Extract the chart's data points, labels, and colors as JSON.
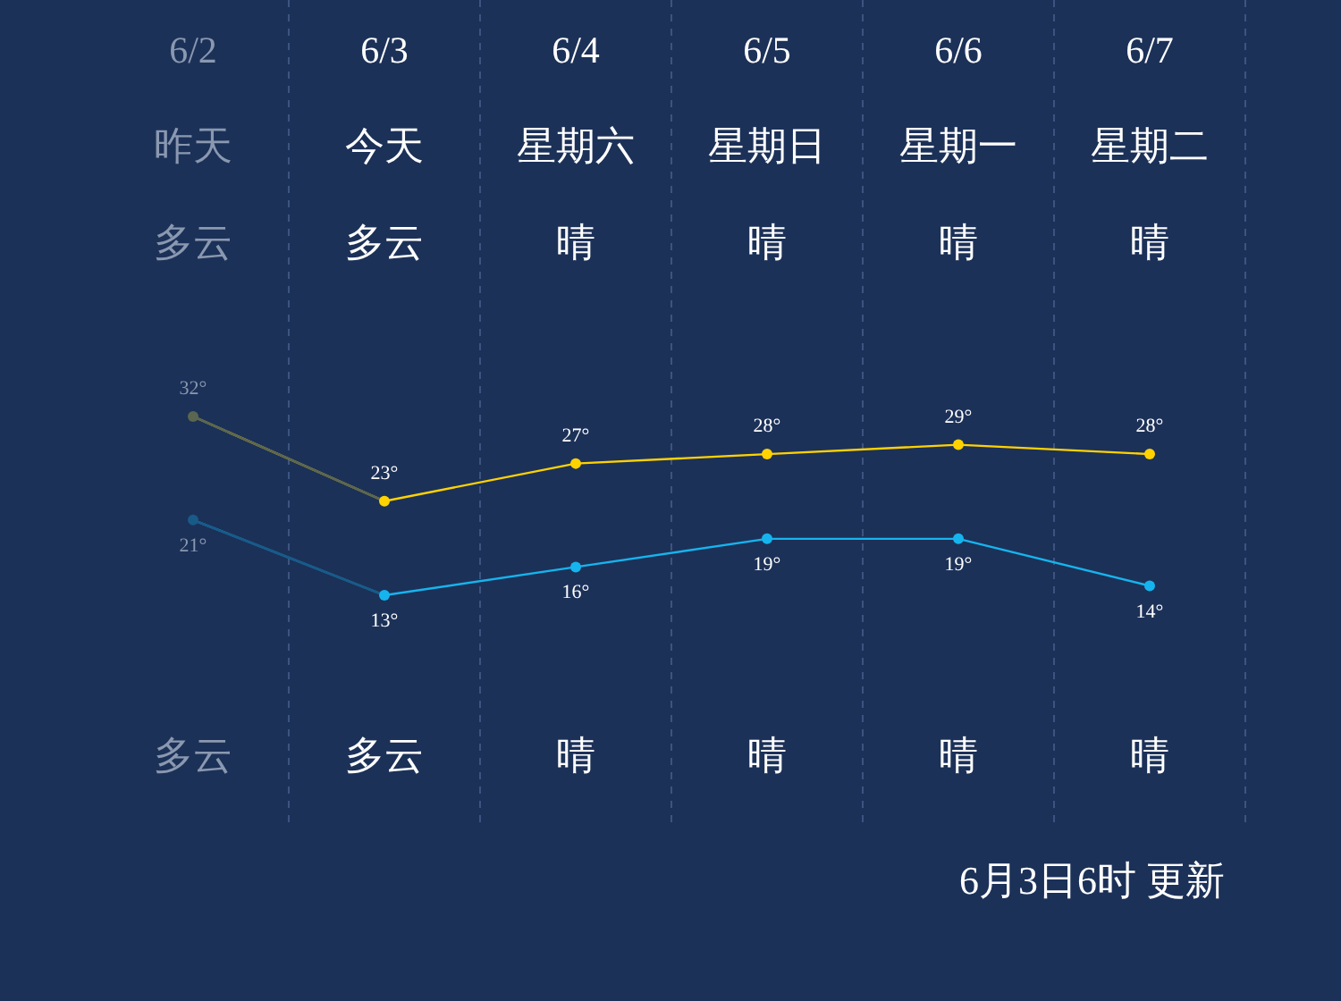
{
  "chart_data": {
    "type": "line",
    "categories": [
      "6/2",
      "6/3",
      "6/4",
      "6/5",
      "6/6",
      "6/7"
    ],
    "series": [
      {
        "color": "#ffd200",
        "colors": [
          "#5a6650",
          "#ffd200",
          "#ffd200",
          "#ffd200",
          "#ffd200",
          "#ffd200"
        ],
        "values": [
          32,
          23,
          27,
          28,
          29,
          28
        ],
        "value_labels": [
          "32°",
          "23°",
          "27°",
          "28°",
          "29°",
          "28°"
        ]
      },
      {
        "color": "#16b4ee",
        "colors": [
          "#185a88",
          "#16b4ee",
          "#16b4ee",
          "#16b4ee",
          "#16b4ee",
          "#16b4ee"
        ],
        "values": [
          21,
          13,
          16,
          19,
          19,
          14
        ],
        "value_labels": [
          "21°",
          "13°",
          "16°",
          "19°",
          "19°",
          "14°"
        ]
      }
    ],
    "marker": "circle",
    "grid": "x",
    "annotations": [
      "昨天",
      "今天",
      "星期六",
      "星期日",
      "星期一",
      "星期二",
      "多云",
      "多云",
      "晴",
      "晴",
      "晴",
      "晴",
      "多云",
      "多云",
      "晴",
      "晴",
      "晴",
      "晴",
      "6月3日6时 更新"
    ]
  }
}
